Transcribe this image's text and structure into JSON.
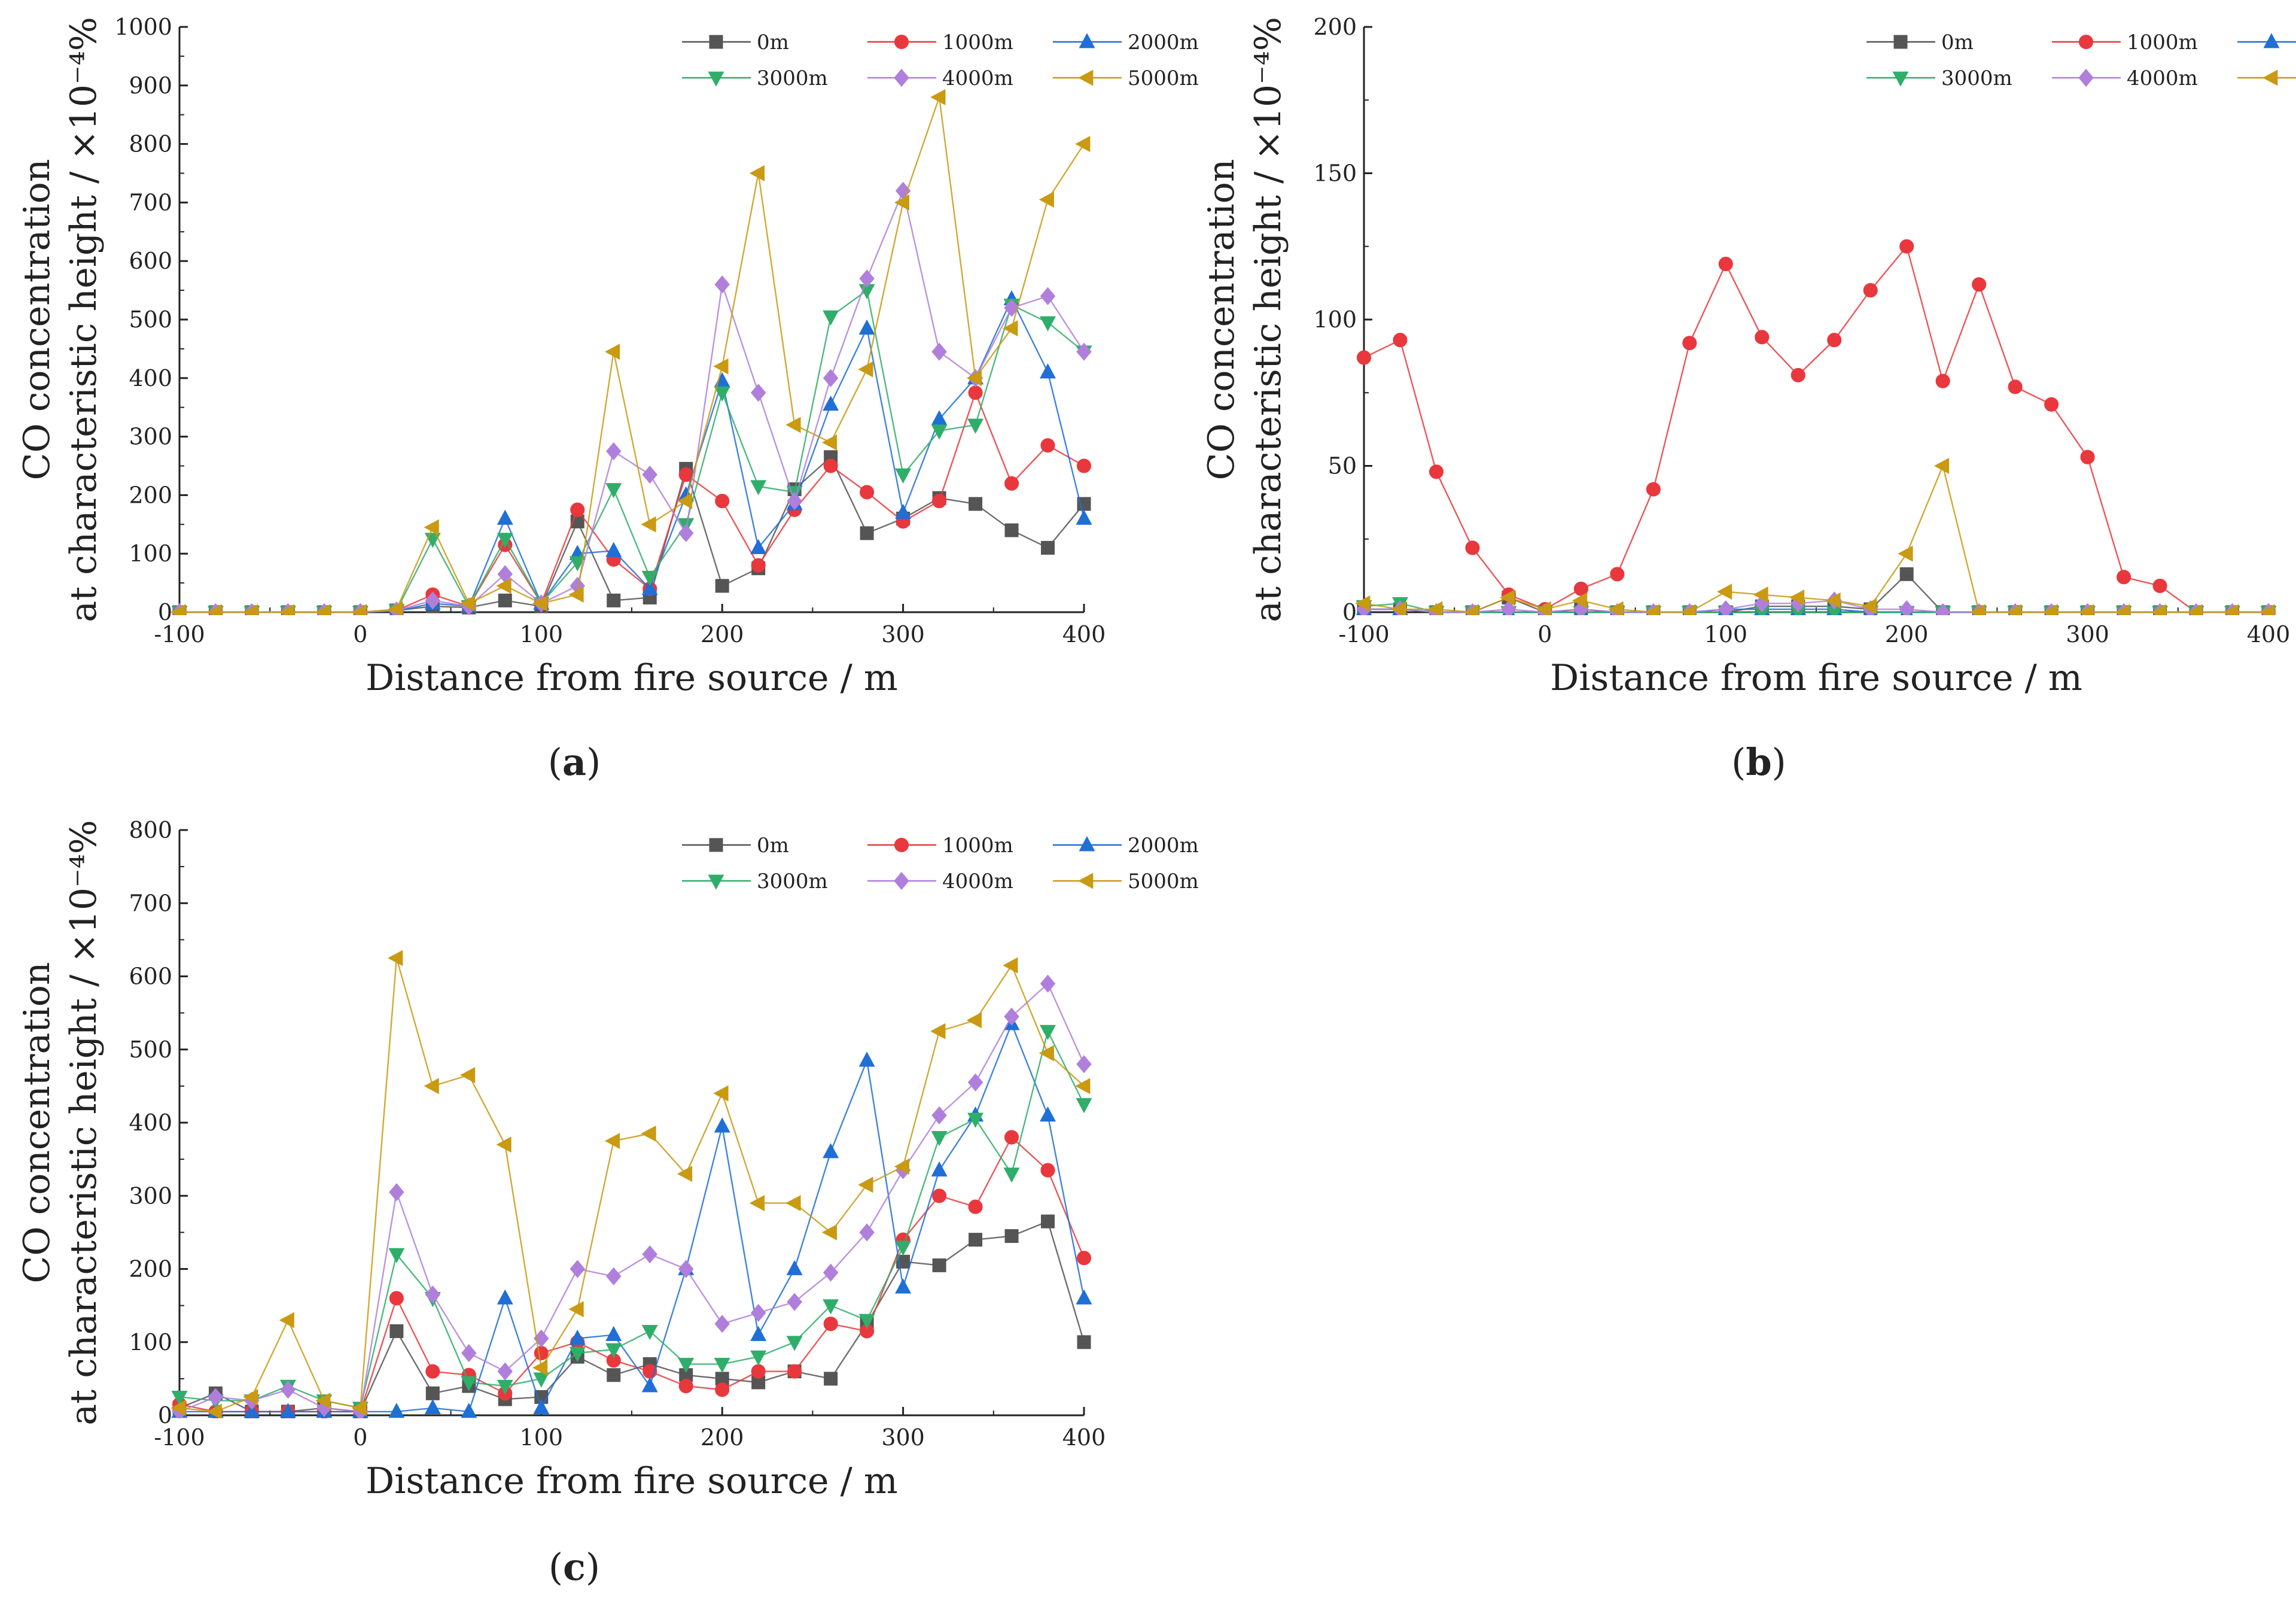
{
  "legend": {
    "title_suffix": "",
    "series": [
      {
        "name": "0m",
        "color": "#555555",
        "marker": "square"
      },
      {
        "name": "1000m",
        "color": "#e8383d",
        "marker": "circle"
      },
      {
        "name": "2000m",
        "color": "#1f6fd6",
        "marker": "triangle-up"
      },
      {
        "name": "3000m",
        "color": "#2fae6a",
        "marker": "triangle-down"
      },
      {
        "name": "4000m",
        "color": "#b07fdc",
        "marker": "diamond"
      },
      {
        "name": "5000m",
        "color": "#c99a12",
        "marker": "triangle-left"
      }
    ]
  },
  "chart_data": [
    {
      "id": "a",
      "type": "line",
      "caption_open": "(",
      "caption_letter": "a",
      "caption_close": ")",
      "title": "",
      "xlabel": "Distance from fire source / m",
      "ylabel_line1": "CO concentration",
      "ylabel_line2": "at characteristic height / ×10⁻⁴%",
      "xlim": [
        -100,
        400
      ],
      "ylim": [
        0,
        1000
      ],
      "xticks": [
        -100,
        0,
        100,
        200,
        300,
        400
      ],
      "yticks": [
        0,
        100,
        200,
        300,
        400,
        500,
        600,
        700,
        800,
        900,
        1000
      ],
      "x": [
        -100,
        -80,
        -60,
        -40,
        -20,
        0,
        20,
        40,
        60,
        80,
        100,
        120,
        140,
        160,
        180,
        200,
        220,
        240,
        260,
        280,
        300,
        320,
        340,
        360,
        380,
        400
      ],
      "series": [
        {
          "name": "0m",
          "values": [
            0,
            0,
            0,
            0,
            0,
            0,
            3,
            10,
            8,
            20,
            10,
            155,
            20,
            25,
            245,
            45,
            75,
            210,
            265,
            135,
            160,
            195,
            185,
            140,
            110,
            185
          ]
        },
        {
          "name": "1000m",
          "values": [
            0,
            0,
            0,
            0,
            0,
            0,
            3,
            30,
            10,
            115,
            15,
            175,
            90,
            40,
            235,
            190,
            80,
            175,
            250,
            205,
            155,
            190,
            375,
            220,
            285,
            250
          ]
        },
        {
          "name": "2000m",
          "values": [
            0,
            0,
            0,
            0,
            0,
            0,
            2,
            15,
            10,
            160,
            15,
            100,
            105,
            40,
            200,
            395,
            110,
            185,
            355,
            485,
            170,
            330,
            400,
            535,
            410,
            160
          ]
        },
        {
          "name": "3000m",
          "values": [
            0,
            0,
            0,
            0,
            0,
            0,
            3,
            125,
            10,
            125,
            15,
            85,
            210,
            60,
            150,
            375,
            215,
            205,
            505,
            550,
            235,
            310,
            320,
            525,
            495,
            445
          ]
        },
        {
          "name": "4000m",
          "values": [
            0,
            0,
            0,
            0,
            0,
            0,
            3,
            20,
            10,
            65,
            15,
            45,
            275,
            235,
            135,
            560,
            375,
            190,
            400,
            570,
            720,
            445,
            400,
            520,
            540,
            445
          ]
        },
        {
          "name": "5000m",
          "values": [
            0,
            0,
            0,
            0,
            0,
            0,
            5,
            145,
            15,
            45,
            15,
            30,
            445,
            150,
            190,
            420,
            750,
            320,
            290,
            415,
            700,
            880,
            400,
            485,
            705,
            800
          ]
        }
      ]
    },
    {
      "id": "b",
      "type": "line",
      "caption_open": "(",
      "caption_letter": "b",
      "caption_close": ")",
      "title": "",
      "xlabel": "Distance from fire source / m",
      "ylabel_line1": "CO concentration",
      "ylabel_line2": "at characteristic height / ×10⁻⁴%",
      "xlim": [
        -100,
        400
      ],
      "ylim": [
        0,
        200
      ],
      "xticks": [
        -100,
        0,
        100,
        200,
        300,
        400
      ],
      "yticks": [
        0,
        50,
        100,
        150,
        200
      ],
      "x": [
        -100,
        -80,
        -60,
        -40,
        -20,
        0,
        20,
        40,
        60,
        80,
        100,
        120,
        140,
        160,
        180,
        200,
        220,
        240,
        260,
        280,
        300,
        320,
        340,
        360,
        380,
        400
      ],
      "series": [
        {
          "name": "0m",
          "values": [
            1,
            1,
            0,
            0,
            5,
            0,
            1,
            0,
            0,
            0,
            0,
            2,
            2,
            2,
            1,
            13,
            0,
            0,
            0,
            0,
            0,
            0,
            0,
            0,
            0,
            0
          ]
        },
        {
          "name": "1000m",
          "values": [
            87,
            93,
            48,
            22,
            6,
            1,
            8,
            13,
            42,
            92,
            119,
            94,
            81,
            93,
            110,
            125,
            79,
            112,
            77,
            71,
            53,
            12,
            9,
            0,
            0,
            0
          ]
        },
        {
          "name": "2000m",
          "values": [
            1,
            1,
            0,
            0,
            0,
            0,
            0,
            0,
            0,
            0,
            1,
            1,
            1,
            1,
            0,
            0,
            0,
            0,
            0,
            0,
            0,
            0,
            0,
            0,
            0,
            0
          ]
        },
        {
          "name": "3000m",
          "values": [
            2,
            3,
            0,
            0,
            0,
            0,
            0,
            0,
            0,
            0,
            0,
            0,
            0,
            0,
            0,
            0,
            0,
            0,
            0,
            0,
            0,
            0,
            0,
            0,
            0,
            0
          ]
        },
        {
          "name": "4000m",
          "values": [
            1,
            1,
            0,
            0,
            1,
            0,
            1,
            0,
            0,
            0,
            1,
            3,
            3,
            4,
            1,
            1,
            0,
            0,
            0,
            0,
            0,
            0,
            0,
            0,
            0,
            0
          ]
        },
        {
          "name": "5000m",
          "values": [
            3,
            1,
            1,
            0,
            5,
            1,
            4,
            1,
            0,
            0,
            7,
            6,
            5,
            4,
            2,
            20,
            50,
            0,
            0,
            0,
            0,
            0,
            0,
            0,
            0,
            0
          ]
        }
      ]
    },
    {
      "id": "c",
      "type": "line",
      "caption_open": "(",
      "caption_letter": "c",
      "caption_close": ")",
      "title": "",
      "xlabel": "Distance from fire source / m",
      "ylabel_line1": "CO concentration",
      "ylabel_line2": "at characteristic height / ×10⁻⁴%",
      "xlim": [
        -100,
        400
      ],
      "ylim": [
        0,
        800
      ],
      "xticks": [
        -100,
        0,
        100,
        200,
        300,
        400
      ],
      "yticks": [
        0,
        100,
        200,
        300,
        400,
        500,
        600,
        700,
        800
      ],
      "x": [
        -100,
        -80,
        -60,
        -40,
        -20,
        0,
        20,
        40,
        60,
        80,
        100,
        120,
        140,
        160,
        180,
        200,
        220,
        240,
        260,
        280,
        300,
        320,
        340,
        360,
        380,
        400
      ],
      "series": [
        {
          "name": "0m",
          "values": [
            10,
            30,
            5,
            5,
            10,
            5,
            115,
            30,
            40,
            22,
            25,
            80,
            55,
            70,
            55,
            50,
            45,
            60,
            50,
            125,
            210,
            205,
            240,
            245,
            265,
            100
          ]
        },
        {
          "name": "1000m",
          "values": [
            15,
            5,
            5,
            5,
            5,
            5,
            160,
            60,
            55,
            30,
            85,
            100,
            75,
            60,
            40,
            35,
            60,
            60,
            125,
            115,
            240,
            300,
            285,
            380,
            335,
            215
          ]
        },
        {
          "name": "2000m",
          "values": [
            5,
            5,
            5,
            5,
            5,
            5,
            5,
            10,
            5,
            160,
            10,
            105,
            110,
            40,
            200,
            395,
            110,
            200,
            360,
            485,
            175,
            335,
            410,
            535,
            410,
            160
          ]
        },
        {
          "name": "3000m",
          "values": [
            25,
            20,
            20,
            40,
            20,
            10,
            220,
            160,
            45,
            40,
            50,
            85,
            90,
            115,
            70,
            70,
            80,
            100,
            150,
            130,
            230,
            380,
            405,
            330,
            525,
            425
          ]
        },
        {
          "name": "4000m",
          "values": [
            5,
            25,
            20,
            35,
            10,
            5,
            305,
            165,
            85,
            60,
            105,
            200,
            190,
            220,
            200,
            125,
            140,
            155,
            195,
            250,
            335,
            410,
            455,
            545,
            590,
            480
          ]
        },
        {
          "name": "5000m",
          "values": [
            10,
            5,
            25,
            130,
            20,
            10,
            625,
            450,
            465,
            370,
            65,
            145,
            375,
            385,
            330,
            440,
            290,
            290,
            250,
            315,
            340,
            525,
            540,
            615,
            495,
            450
          ]
        }
      ]
    }
  ]
}
